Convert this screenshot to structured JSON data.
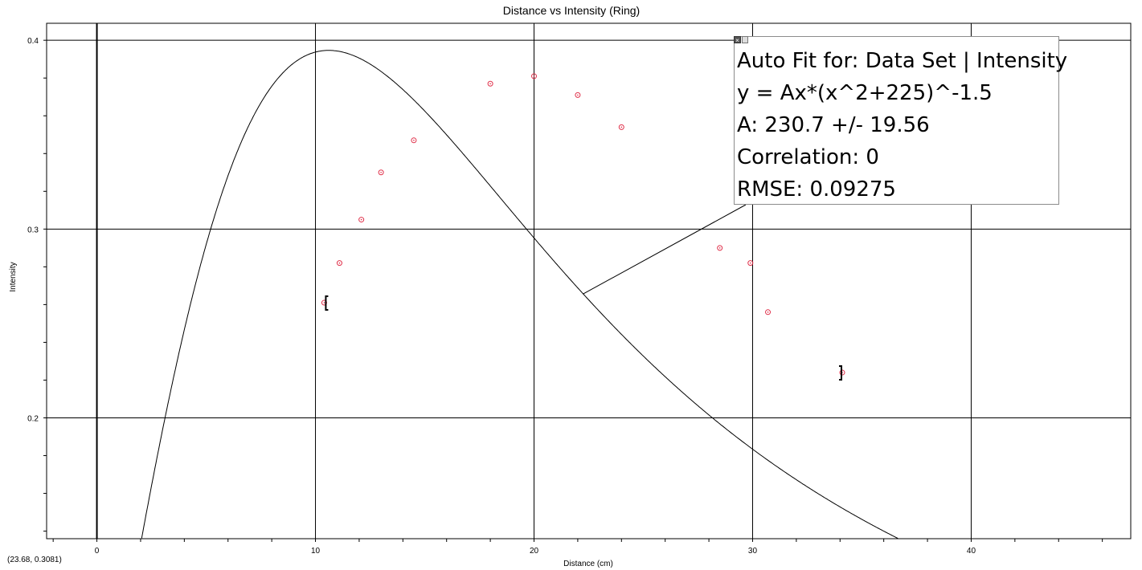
{
  "chart_data": {
    "type": "scatter",
    "title": "Distance vs Intensity (Ring)",
    "xlabel": "Distance (cm)",
    "ylabel": "Intensity",
    "xlim": [
      -2.3,
      47.3
    ],
    "ylim": [
      0.136,
      0.409
    ],
    "x_ticks": [
      0,
      10,
      20,
      30,
      40
    ],
    "y_ticks": [
      0.2,
      0.3,
      0.4
    ],
    "x_tick_labels": [
      "0",
      "10",
      "20",
      "30",
      "40"
    ],
    "y_tick_labels": [
      "0.2",
      "0.3",
      "0.4"
    ],
    "grid": true,
    "series": [
      {
        "name": "Data Set | Intensity",
        "color": "#e0304a",
        "marker": "circle",
        "points": [
          [
            10.4,
            0.261
          ],
          [
            11.1,
            0.282
          ],
          [
            12.1,
            0.305
          ],
          [
            13.0,
            0.33
          ],
          [
            14.5,
            0.347
          ],
          [
            18.0,
            0.377
          ],
          [
            20.0,
            0.381
          ],
          [
            22.0,
            0.371
          ],
          [
            24.0,
            0.354
          ],
          [
            28.5,
            0.29
          ],
          [
            29.9,
            0.282
          ],
          [
            30.7,
            0.256
          ],
          [
            34.1,
            0.224
          ]
        ]
      }
    ],
    "fit": {
      "equation": "y = Ax*(x^2+225)^-1.5",
      "A": 230.7,
      "c": 225,
      "range": [
        10.4,
        34.1
      ]
    }
  },
  "fit_box": {
    "lines": [
      "Auto Fit for: Data Set | Intensity",
      "y = Ax*(x^2+225)^-1.5",
      "A: 230.7 +/- 19.56",
      "Correlation: 0",
      "RMSE: 0.09275"
    ]
  },
  "coord_readout": "(23.68, 0.3081)",
  "icons": {
    "close": "close-icon",
    "menu": "menu-icon"
  }
}
